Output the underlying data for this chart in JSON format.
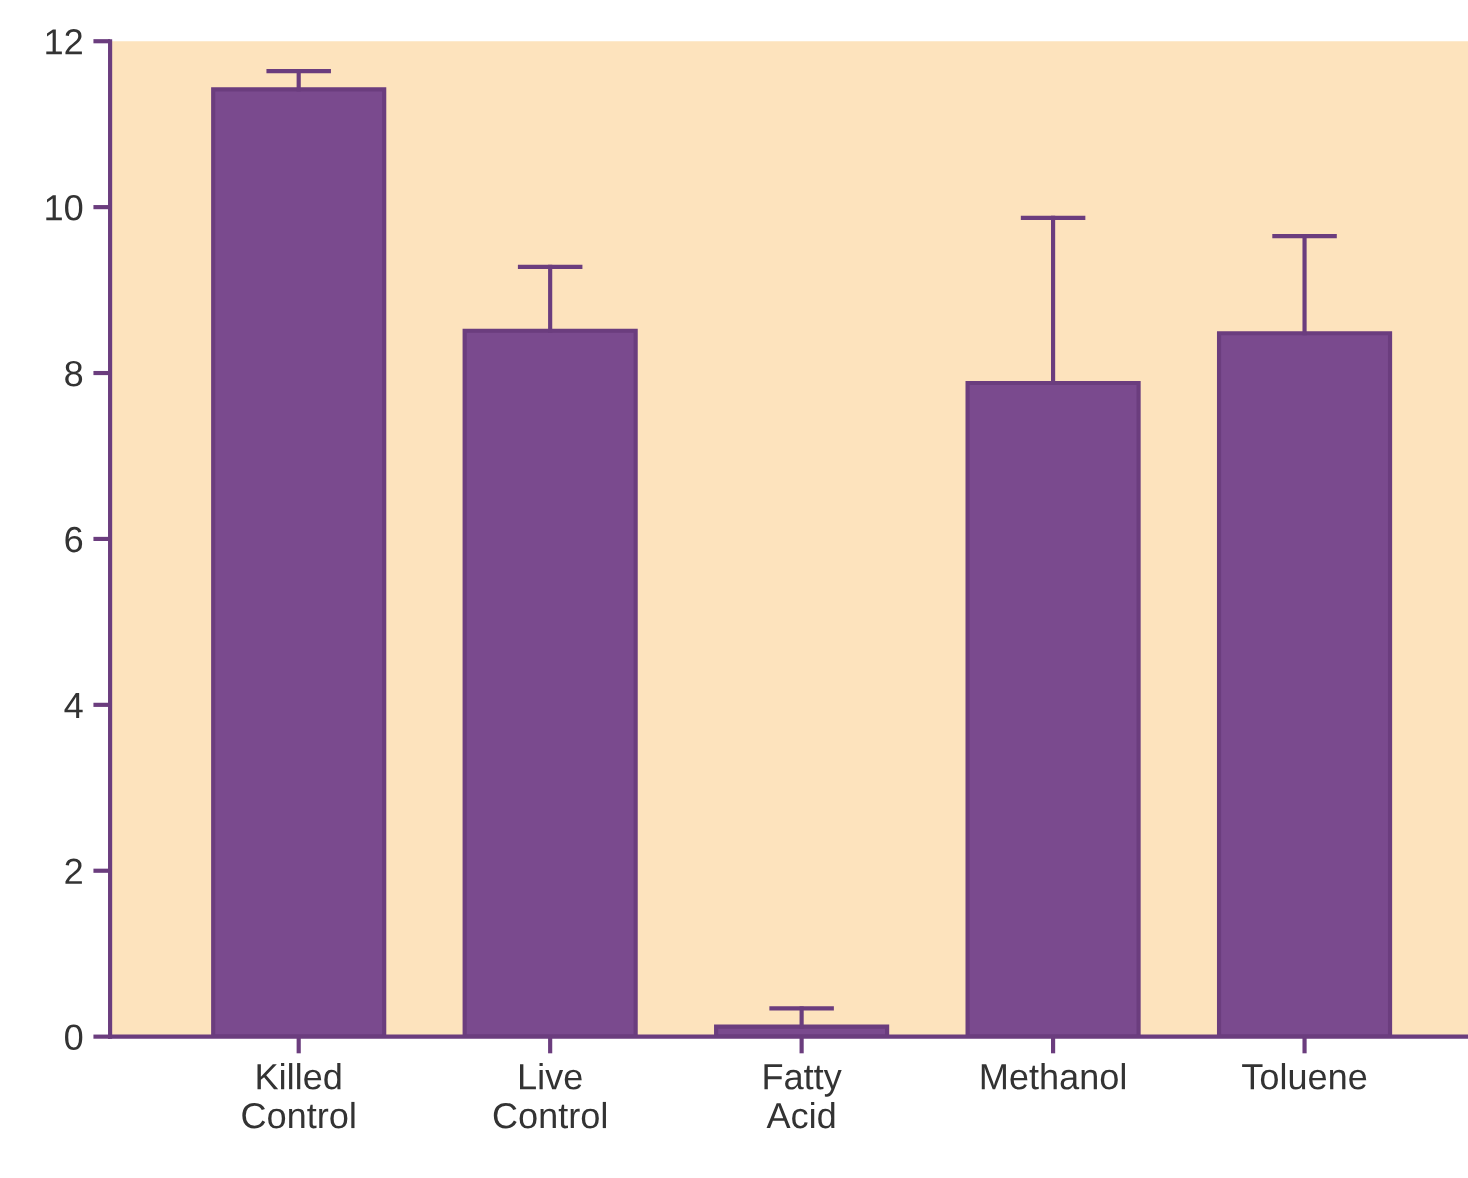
{
  "chart_data": {
    "type": "bar",
    "categories": [
      "Killed\nControl",
      "Live\nControl",
      "Fatty\nAcid",
      "Methanol",
      "Toluene"
    ],
    "values": [
      11.42,
      8.51,
      0.12,
      7.88,
      8.48
    ],
    "errors": [
      [
        11.42,
        11.64
      ],
      [
        8.51,
        9.28
      ],
      [
        0.12,
        0.34
      ],
      [
        7.88,
        9.87
      ],
      [
        8.48,
        9.65
      ]
    ],
    "color": "#7a4a8e",
    "ylim": [
      0,
      12
    ],
    "yticks": [
      0,
      2,
      4,
      6,
      8,
      10,
      12
    ],
    "grid": false
  }
}
